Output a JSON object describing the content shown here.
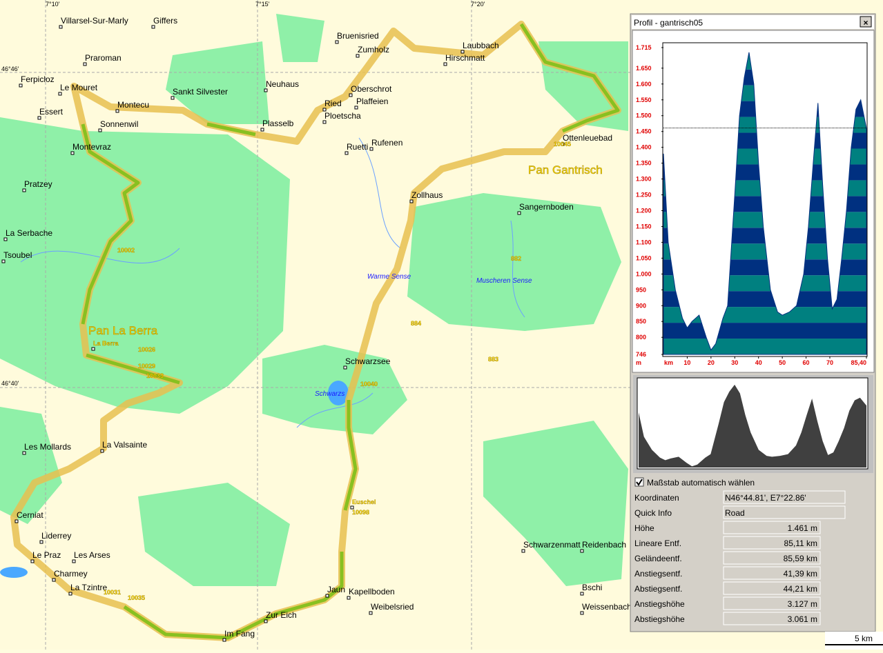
{
  "map": {
    "places": [
      "Villarsel-Sur-Marly",
      "Giffers",
      "Bruenisried",
      "Zumholz",
      "Laubbach",
      "Hirschmatt",
      "Praroman",
      "Ferpicloz",
      "Le Mouret",
      "Sankt Silvester",
      "Neuhaus",
      "Oberschrot",
      "Ried",
      "Plaffeien",
      "Ploetscha",
      "Montecu",
      "Essert",
      "Sonnenwil",
      "Plasselb",
      "Ottenleuebad",
      "Rufenen",
      "Ruetti",
      "Montevraz",
      "Pratzey",
      "Zollhaus",
      "Sangernboden",
      "La Serbache",
      "Tsoubel",
      "Schwarzsee",
      "Les Mollards",
      "La Valsainte",
      "Cerniat",
      "Liderrey",
      "Le Praz",
      "Les Arses",
      "Charmey",
      "La Tzintre",
      "Jaun",
      "Kapellboden",
      "Weibelsried",
      "Zur Eich",
      "Im Fang",
      "Schwarzenmatt",
      "Reidenbach",
      "Bschi",
      "Weissenbach",
      "La Berra",
      "Euschel"
    ],
    "waters": [
      "Warme Sense",
      "Muscheren Sense",
      "Schwarzs"
    ],
    "highlights": [
      "Pan Gantrisch",
      "Pan La Berra"
    ],
    "route_numbers": [
      "10002",
      "10026",
      "10029",
      "10033",
      "10040",
      "10045",
      "10098",
      "10031",
      "10035",
      "882",
      "884",
      "883"
    ],
    "coords": [
      "7°10'",
      "7°15'",
      "7°20'",
      "46°46'",
      "46°40'"
    ],
    "scale": "5 km"
  },
  "panel": {
    "title": "Profil - gantrisch05",
    "close": "×",
    "checkbox": "Maßstab automatisch wählen",
    "info": [
      [
        "Koordinaten",
        "N46°44.81', E7°22.86'"
      ],
      [
        "Quick Info",
        "Road"
      ],
      [
        "Höhe",
        "1.461 m"
      ],
      [
        "Lineare Entf.",
        "85,11 km"
      ],
      [
        "Geländeentf.",
        "85,59 km"
      ],
      [
        "Anstiegsentf.",
        "41,39 km"
      ],
      [
        "Abstiegsentf.",
        "44,21 km"
      ],
      [
        "Anstiegshöhe",
        "3.127 m"
      ],
      [
        "Abstiegshöhe",
        "3.061 m"
      ]
    ]
  },
  "chart_data": {
    "type": "area",
    "y_unit": "m",
    "x_unit": "km",
    "x": [
      0,
      2,
      5,
      8,
      10,
      12,
      15,
      18,
      20,
      22,
      25,
      27,
      30,
      32,
      34,
      36,
      38,
      40,
      42,
      45,
      48,
      50,
      53,
      56,
      59,
      61,
      63,
      65,
      67,
      69,
      71,
      73,
      75,
      77,
      79,
      81,
      83,
      85.4
    ],
    "series": [
      {
        "color": "#003080",
        "values": [
          1380,
          1100,
          950,
          860,
          830,
          850,
          870,
          800,
          760,
          780,
          860,
          900,
          1250,
          1500,
          1620,
          1700,
          1600,
          1350,
          1150,
          950,
          880,
          870,
          880,
          900,
          1000,
          1150,
          1350,
          1540,
          1280,
          1050,
          890,
          920,
          1050,
          1200,
          1400,
          1520,
          1550,
          1460
        ]
      }
    ],
    "reference_line": 1461,
    "xlim": [
      0,
      85.4
    ],
    "ylim": [
      746,
      1715
    ],
    "xticks": [
      10,
      20,
      30,
      40,
      50,
      60,
      70,
      {
        "value": 85.4,
        "label": "85,40"
      }
    ],
    "yticks": [
      746,
      800,
      850,
      900,
      950,
      {
        "value": 1000,
        "label": "1.000"
      },
      {
        "value": 1050,
        "label": "1.050"
      },
      {
        "value": 1100,
        "label": "1.100"
      },
      {
        "value": 1150,
        "label": "1.150"
      },
      {
        "value": 1200,
        "label": "1.200"
      },
      {
        "value": 1250,
        "label": "1.250"
      },
      {
        "value": 1300,
        "label": "1.300"
      },
      {
        "value": 1350,
        "label": "1.350"
      },
      {
        "value": 1400,
        "label": "1.400"
      },
      {
        "value": 1450,
        "label": "1.450"
      },
      {
        "value": 1500,
        "label": "1.500"
      },
      {
        "value": 1550,
        "label": "1.550"
      },
      {
        "value": 1600,
        "label": "1.600"
      },
      {
        "value": 1650,
        "label": "1.650"
      },
      {
        "value": 1715,
        "label": "1.715"
      }
    ]
  }
}
